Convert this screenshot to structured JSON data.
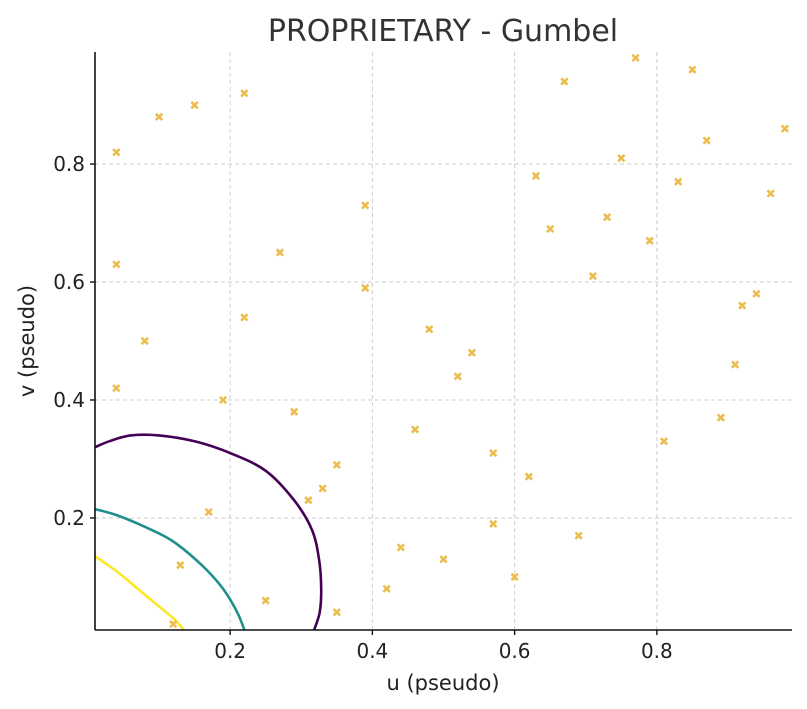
{
  "chart_data": {
    "type": "scatter",
    "title": "PROPRIETARY - Gumbel",
    "xlabel": "u (pseudo)",
    "ylabel": "v (pseudo)",
    "xlim": [
      0.01,
      0.99
    ],
    "ylim": [
      0.01,
      0.99
    ],
    "xticks": [
      0.2,
      0.4,
      0.6,
      0.8
    ],
    "yticks": [
      0.2,
      0.4,
      0.6,
      0.8
    ],
    "xtick_labels": [
      "0.2",
      "0.4",
      "0.6",
      "0.8"
    ],
    "ytick_labels": [
      "0.2",
      "0.4",
      "0.6",
      "0.8"
    ],
    "grid": true,
    "scatter": {
      "marker": "x",
      "color": "#ebbd4f",
      "points": [
        [
          0.77,
          0.98
        ],
        [
          0.67,
          0.94
        ],
        [
          0.85,
          0.96
        ],
        [
          0.98,
          0.86
        ],
        [
          0.87,
          0.84
        ],
        [
          0.04,
          0.82
        ],
        [
          0.1,
          0.88
        ],
        [
          0.15,
          0.9
        ],
        [
          0.22,
          0.92
        ],
        [
          0.75,
          0.81
        ],
        [
          0.63,
          0.78
        ],
        [
          0.83,
          0.77
        ],
        [
          0.96,
          0.75
        ],
        [
          0.39,
          0.73
        ],
        [
          0.73,
          0.71
        ],
        [
          0.65,
          0.69
        ],
        [
          0.79,
          0.67
        ],
        [
          0.27,
          0.65
        ],
        [
          0.04,
          0.63
        ],
        [
          0.71,
          0.61
        ],
        [
          0.39,
          0.59
        ],
        [
          0.94,
          0.58
        ],
        [
          0.92,
          0.56
        ],
        [
          0.22,
          0.54
        ],
        [
          0.48,
          0.52
        ],
        [
          0.08,
          0.5
        ],
        [
          0.54,
          0.48
        ],
        [
          0.91,
          0.46
        ],
        [
          0.52,
          0.44
        ],
        [
          0.04,
          0.42
        ],
        [
          0.19,
          0.4
        ],
        [
          0.29,
          0.38
        ],
        [
          0.89,
          0.37
        ],
        [
          0.46,
          0.35
        ],
        [
          0.81,
          0.33
        ],
        [
          0.57,
          0.31
        ],
        [
          0.35,
          0.29
        ],
        [
          0.62,
          0.27
        ],
        [
          0.33,
          0.25
        ],
        [
          0.31,
          0.23
        ],
        [
          0.17,
          0.21
        ],
        [
          0.57,
          0.19
        ],
        [
          0.69,
          0.17
        ],
        [
          0.44,
          0.15
        ],
        [
          0.5,
          0.13
        ],
        [
          0.13,
          0.12
        ],
        [
          0.6,
          0.1
        ],
        [
          0.42,
          0.08
        ],
        [
          0.25,
          0.06
        ],
        [
          0.35,
          0.04
        ],
        [
          0.12,
          0.02
        ]
      ]
    },
    "contours": [
      {
        "color": "#440154",
        "points": [
          [
            0.01,
            0.32
          ],
          [
            0.03,
            0.33
          ],
          [
            0.06,
            0.34
          ],
          [
            0.1,
            0.34
          ],
          [
            0.15,
            0.33
          ],
          [
            0.2,
            0.31
          ],
          [
            0.25,
            0.28
          ],
          [
            0.29,
            0.23
          ],
          [
            0.315,
            0.18
          ],
          [
            0.325,
            0.13
          ],
          [
            0.328,
            0.08
          ],
          [
            0.326,
            0.04
          ],
          [
            0.318,
            0.01
          ]
        ]
      },
      {
        "color": "#21908c",
        "points": [
          [
            0.01,
            0.215
          ],
          [
            0.04,
            0.205
          ],
          [
            0.08,
            0.185
          ],
          [
            0.12,
            0.16
          ],
          [
            0.16,
            0.12
          ],
          [
            0.19,
            0.08
          ],
          [
            0.21,
            0.04
          ],
          [
            0.22,
            0.01
          ]
        ]
      },
      {
        "color": "#fde725",
        "points": [
          [
            0.01,
            0.135
          ],
          [
            0.04,
            0.11
          ],
          [
            0.07,
            0.08
          ],
          [
            0.1,
            0.05
          ],
          [
            0.12,
            0.03
          ],
          [
            0.135,
            0.01
          ]
        ]
      }
    ]
  }
}
